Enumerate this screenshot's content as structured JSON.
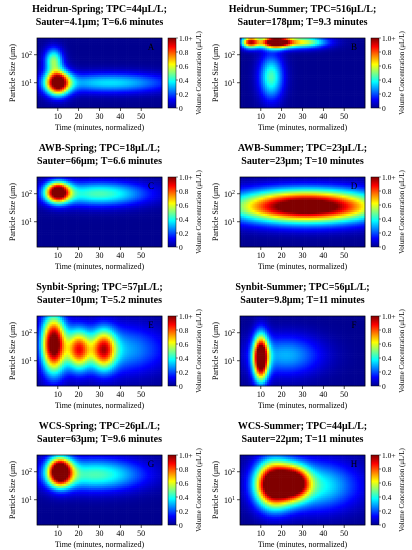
{
  "panel_grid": {
    "rows": 4,
    "cols": 2
  },
  "axis_text": {
    "ylabel": "Particle Size (μm)",
    "xlabel": "Time (minutes, normalized)",
    "cbar_label": "Volume Concentration (μL/L)",
    "x_ticks": [
      "10",
      "20",
      "30",
      "40",
      "50"
    ],
    "y_ticks": [
      "10",
      "10"
    ],
    "y_tick_exponents": [
      "2",
      "1"
    ],
    "cbar_ticks": [
      "1.0+",
      "0.8",
      "0.6",
      "0.4",
      "0.2",
      "0"
    ]
  },
  "colorscale": [
    "#00008f",
    "#0000ff",
    "#0080ff",
    "#00ffff",
    "#80ff80",
    "#ffff00",
    "#ff8000",
    "#ff0000",
    "#800000"
  ],
  "chart_data": [
    {
      "type": "heatmap",
      "letter": "A",
      "title": "Heidrun-Spring; TPC=44μL/L;",
      "subtitle": "Sauter=4.1μm; T=6.6 minutes",
      "xlim": [
        0,
        60
      ],
      "ylim_log": [
        0.1,
        2.6
      ],
      "blobs": [
        {
          "x": 10,
          "y": 1.0,
          "sx": 4,
          "sy": 0.3,
          "v": 1.1
        },
        {
          "x": 35,
          "y": 1.0,
          "sx": 20,
          "sy": 0.25,
          "v": 0.35
        },
        {
          "x": 8,
          "y": 1.8,
          "sx": 3,
          "sy": 0.3,
          "v": 0.5
        }
      ]
    },
    {
      "type": "heatmap",
      "letter": "B",
      "title": "Heidrun-Summer; TPC=516μL/L;",
      "subtitle": "Sauter=178μm; T=9.3 minutes",
      "xlim": [
        0,
        60
      ],
      "ylim_log": [
        0.1,
        2.6
      ],
      "blobs": [
        {
          "x": 17,
          "y": 2.45,
          "sx": 5,
          "sy": 0.15,
          "v": 1.2
        },
        {
          "x": 5,
          "y": 2.45,
          "sx": 3,
          "sy": 0.15,
          "v": 0.9
        },
        {
          "x": 30,
          "y": 2.45,
          "sx": 8,
          "sy": 0.15,
          "v": 0.6
        },
        {
          "x": 15,
          "y": 1.2,
          "sx": 4,
          "sy": 0.55,
          "v": 0.45
        }
      ]
    },
    {
      "type": "heatmap",
      "letter": "C",
      "title": "AWB-Spring; TPC=18μL/L;",
      "subtitle": "Sauter=66μm; T=6.6 minutes",
      "xlim": [
        0,
        60
      ],
      "ylim_log": [
        0.1,
        2.6
      ],
      "blobs": [
        {
          "x": 10,
          "y": 2.05,
          "sx": 4,
          "sy": 0.25,
          "v": 1.1
        },
        {
          "x": 30,
          "y": 2.0,
          "sx": 16,
          "sy": 0.3,
          "v": 0.45
        }
      ]
    },
    {
      "type": "heatmap",
      "letter": "D",
      "title": "AWB-Summer; TPC=23μL/L;",
      "subtitle": "Sauter=23μm; T=10 minutes",
      "xlim": [
        0,
        60
      ],
      "ylim_log": [
        0.1,
        2.6
      ],
      "blobs": [
        {
          "x": 32,
          "y": 1.55,
          "sx": 24,
          "sy": 0.4,
          "v": 1.2
        }
      ]
    },
    {
      "type": "heatmap",
      "letter": "E",
      "title": "Synbit-Spring; TPC=57μL/L;",
      "subtitle": "Sauter=10μm; T=5.2 minutes",
      "xlim": [
        0,
        60
      ],
      "ylim_log": [
        0.1,
        2.6
      ],
      "blobs": [
        {
          "x": 8,
          "y": 1.6,
          "sx": 4,
          "sy": 0.7,
          "v": 1.1
        },
        {
          "x": 20,
          "y": 1.4,
          "sx": 4,
          "sy": 0.5,
          "v": 0.75
        },
        {
          "x": 32,
          "y": 1.4,
          "sx": 4,
          "sy": 0.5,
          "v": 0.7
        },
        {
          "x": 40,
          "y": 1.4,
          "sx": 15,
          "sy": 0.6,
          "v": 0.3
        }
      ]
    },
    {
      "type": "heatmap",
      "letter": "F",
      "title": "Synbit-Summer; TPC=56μL/L;",
      "subtitle": "Sauter=9.8μm; T=11 minutes",
      "xlim": [
        0,
        60
      ],
      "ylim_log": [
        0.1,
        2.6
      ],
      "blobs": [
        {
          "x": 10,
          "y": 1.1,
          "sx": 2.5,
          "sy": 0.55,
          "v": 1.2
        },
        {
          "x": 22,
          "y": 1.2,
          "sx": 12,
          "sy": 0.5,
          "v": 0.3
        }
      ]
    },
    {
      "type": "heatmap",
      "letter": "G",
      "title": "WCS-Spring; TPC=26μL/L;",
      "subtitle": "Sauter=63μm; T=9.6 minutes",
      "xlim": [
        0,
        60
      ],
      "ylim_log": [
        0.1,
        2.6
      ],
      "blobs": [
        {
          "x": 11,
          "y": 2.0,
          "sx": 4,
          "sy": 0.35,
          "v": 1.2
        },
        {
          "x": 28,
          "y": 1.9,
          "sx": 16,
          "sy": 0.4,
          "v": 0.45
        }
      ]
    },
    {
      "type": "heatmap",
      "letter": "H",
      "title": "WCS-Summer; TPC=44μL/L;",
      "subtitle": "Sauter=22μm; T=11 minutes",
      "xlim": [
        0,
        60
      ],
      "ylim_log": [
        0.1,
        2.6
      ],
      "blobs": [
        {
          "x": 16,
          "y": 1.55,
          "sx": 6,
          "sy": 0.55,
          "v": 1.2
        },
        {
          "x": 26,
          "y": 1.6,
          "sx": 5,
          "sy": 0.4,
          "v": 0.9
        },
        {
          "x": 36,
          "y": 1.5,
          "sx": 14,
          "sy": 0.6,
          "v": 0.4
        }
      ]
    }
  ]
}
